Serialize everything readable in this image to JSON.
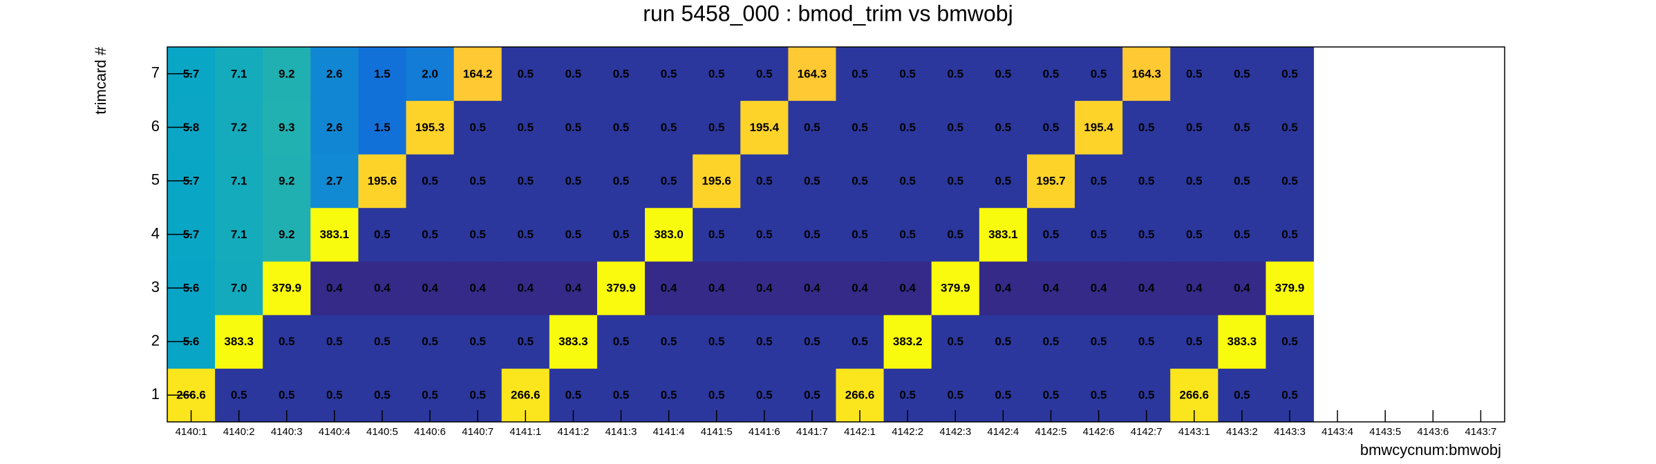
{
  "chart_data": {
    "type": "heatmap",
    "title": "run 5458_000 : bmod_trim vs bmwobj",
    "x_label": "bmwcycnum:bmwobj",
    "y_label": "trimcard #",
    "categories": [
      "4140:1",
      "4140:2",
      "4140:3",
      "4140:4",
      "4140:5",
      "4140:6",
      "4140:7",
      "4141:1",
      "4141:2",
      "4141:3",
      "4141:4",
      "4141:5",
      "4141:6",
      "4141:7",
      "4142:1",
      "4142:2",
      "4142:3",
      "4142:4",
      "4142:5",
      "4142:6",
      "4142:7",
      "4143:1",
      "4143:2",
      "4143:3",
      "4143:4",
      "4143:5",
      "4143:6",
      "4143:7"
    ],
    "y": [
      1,
      2,
      3,
      4,
      5,
      6,
      7
    ],
    "values": [
      [
        266.6,
        0.5,
        0.5,
        0.5,
        0.5,
        0.5,
        0.5,
        266.6,
        0.5,
        0.5,
        0.5,
        0.5,
        0.5,
        0.5,
        266.6,
        0.5,
        0.5,
        0.5,
        0.5,
        0.5,
        0.5,
        266.6,
        0.5,
        0.5,
        null,
        null,
        null,
        null
      ],
      [
        5.6,
        383.3,
        0.5,
        0.5,
        0.5,
        0.5,
        0.5,
        0.5,
        383.3,
        0.5,
        0.5,
        0.5,
        0.5,
        0.5,
        0.5,
        383.2,
        0.5,
        0.5,
        0.5,
        0.5,
        0.5,
        0.5,
        383.3,
        0.5,
        null,
        null,
        null,
        null
      ],
      [
        5.6,
        7.0,
        379.9,
        0.4,
        0.4,
        0.4,
        0.4,
        0.4,
        0.4,
        379.9,
        0.4,
        0.4,
        0.4,
        0.4,
        0.4,
        0.4,
        379.9,
        0.4,
        0.4,
        0.4,
        0.4,
        0.4,
        0.4,
        379.9,
        null,
        null,
        null,
        null
      ],
      [
        5.7,
        7.1,
        9.2,
        383.1,
        0.5,
        0.5,
        0.5,
        0.5,
        0.5,
        0.5,
        383.0,
        0.5,
        0.5,
        0.5,
        0.5,
        0.5,
        0.5,
        383.1,
        0.5,
        0.5,
        0.5,
        0.5,
        0.5,
        0.5,
        null,
        null,
        null,
        null
      ],
      [
        5.7,
        7.1,
        9.2,
        2.7,
        195.6,
        0.5,
        0.5,
        0.5,
        0.5,
        0.5,
        0.5,
        195.6,
        0.5,
        0.5,
        0.5,
        0.5,
        0.5,
        0.5,
        195.7,
        0.5,
        0.5,
        0.5,
        0.5,
        0.5,
        null,
        null,
        null,
        null
      ],
      [
        5.8,
        7.2,
        9.3,
        2.6,
        1.5,
        195.3,
        0.5,
        0.5,
        0.5,
        0.5,
        0.5,
        0.5,
        195.4,
        0.5,
        0.5,
        0.5,
        0.5,
        0.5,
        0.5,
        195.4,
        0.5,
        0.5,
        0.5,
        0.5,
        null,
        null,
        null,
        null
      ],
      [
        5.7,
        7.1,
        9.2,
        2.6,
        1.5,
        2.0,
        164.2,
        0.5,
        0.5,
        0.5,
        0.5,
        0.5,
        0.5,
        164.3,
        0.5,
        0.5,
        0.5,
        0.5,
        0.5,
        0.5,
        164.3,
        0.5,
        0.5,
        0.5,
        null,
        null,
        null,
        null
      ]
    ],
    "value_labels": [
      [
        "266.6",
        "0.5",
        "0.5",
        "0.5",
        "0.5",
        "0.5",
        "0.5",
        "266.6",
        "0.5",
        "0.5",
        "0.5",
        "0.5",
        "0.5",
        "0.5",
        "266.6",
        "0.5",
        "0.5",
        "0.5",
        "0.5",
        "0.5",
        "0.5",
        "266.6",
        "0.5",
        "0.5",
        null,
        null,
        null,
        null
      ],
      [
        "5.6",
        "383.3",
        "0.5",
        "0.5",
        "0.5",
        "0.5",
        "0.5",
        "0.5",
        "383.3",
        "0.5",
        "0.5",
        "0.5",
        "0.5",
        "0.5",
        "0.5",
        "383.2",
        "0.5",
        "0.5",
        "0.5",
        "0.5",
        "0.5",
        "0.5",
        "383.3",
        "0.5",
        null,
        null,
        null,
        null
      ],
      [
        "5.6",
        "7.0",
        "379.9",
        "0.4",
        "0.4",
        "0.4",
        "0.4",
        "0.4",
        "0.4",
        "379.9",
        "0.4",
        "0.4",
        "0.4",
        "0.4",
        "0.4",
        "0.4",
        "379.9",
        "0.4",
        "0.4",
        "0.4",
        "0.4",
        "0.4",
        "0.4",
        "379.9",
        null,
        null,
        null,
        null
      ],
      [
        "5.7",
        "7.1",
        "9.2",
        "383.1",
        "0.5",
        "0.5",
        "0.5",
        "0.5",
        "0.5",
        "0.5",
        "383.0",
        "0.5",
        "0.5",
        "0.5",
        "0.5",
        "0.5",
        "0.5",
        "383.1",
        "0.5",
        "0.5",
        "0.5",
        "0.5",
        "0.5",
        "0.5",
        null,
        null,
        null,
        null
      ],
      [
        "5.7",
        "7.1",
        "9.2",
        "2.7",
        "195.6",
        "0.5",
        "0.5",
        "0.5",
        "0.5",
        "0.5",
        "0.5",
        "195.6",
        "0.5",
        "0.5",
        "0.5",
        "0.5",
        "0.5",
        "0.5",
        "195.7",
        "0.5",
        "0.5",
        "0.5",
        "0.5",
        "0.5",
        null,
        null,
        null,
        null
      ],
      [
        "5.8",
        "7.2",
        "9.3",
        "2.6",
        "1.5",
        "195.3",
        "0.5",
        "0.5",
        "0.5",
        "0.5",
        "0.5",
        "0.5",
        "195.4",
        "0.5",
        "0.5",
        "0.5",
        "0.5",
        "0.5",
        "0.5",
        "195.4",
        "0.5",
        "0.5",
        "0.5",
        "0.5",
        null,
        null,
        null,
        null
      ],
      [
        "5.7",
        "7.1",
        "9.2",
        "2.6",
        "1.5",
        "2.0",
        "164.2",
        "0.5",
        "0.5",
        "0.5",
        "0.5",
        "0.5",
        "0.5",
        "164.3",
        "0.5",
        "0.5",
        "0.5",
        "0.5",
        "0.5",
        "0.5",
        "164.3",
        "0.5",
        "0.5",
        "0.5",
        null,
        null,
        null,
        null
      ]
    ],
    "log_z": true,
    "palette": [
      "#352a87",
      "#0f5cdd",
      "#1481d6",
      "#06a4ca",
      "#2eb7a4",
      "#87bf77",
      "#d1bb59",
      "#fec832",
      "#f9fb0e"
    ]
  }
}
